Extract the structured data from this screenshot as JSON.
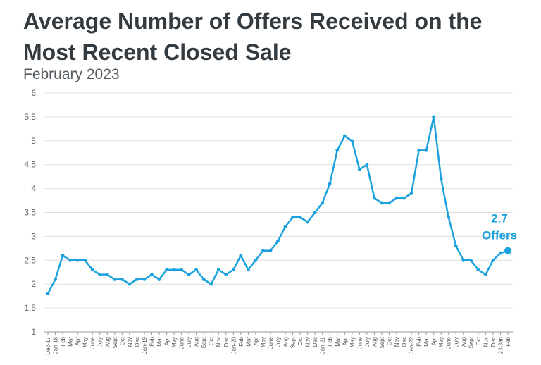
{
  "title": "Average Number of Offers Received on the Most Recent Closed Sale",
  "subtitle": "February 2023",
  "chart_data": {
    "type": "line",
    "title": "Average Number of Offers Received on the Most Recent Closed Sale",
    "subtitle": "February 2023",
    "xlabel": "",
    "ylabel": "",
    "ylim": [
      1,
      6
    ],
    "y_ticks": [
      "1",
      "1.5",
      "2",
      "2.5",
      "3",
      "3.5",
      "4",
      "4.5",
      "5",
      "5.5",
      "6"
    ],
    "grid": "horizontal",
    "line_color": "#1ba1dd",
    "categories": [
      "Dec-17",
      "Jan-18",
      "Feb",
      "Mar",
      "Apr",
      "May",
      "June",
      "July",
      "Aug",
      "Sept",
      "Oct",
      "Nov",
      "Dec",
      "Jan-19",
      "Feb",
      "Mar",
      "Apr",
      "May",
      "June",
      "July",
      "Aug",
      "Sept",
      "Oct",
      "Nov",
      "Dec",
      "Jan-20",
      "Feb",
      "Mar",
      "Apr",
      "May",
      "June",
      "July",
      "Aug",
      "Sept",
      "Oct",
      "Nov",
      "Dec",
      "Jan-21",
      "Feb",
      "Mar",
      "Apr",
      "May",
      "June",
      "July",
      "Aug",
      "Sept",
      "Oct",
      "Nov",
      "Dec",
      "Jan-22",
      "Feb",
      "Mar",
      "Apr",
      "May",
      "June",
      "July",
      "Aug",
      "Sept",
      "Oct",
      "Nov",
      "Dec",
      "23-Jan",
      "Feb"
    ],
    "values": [
      1.8,
      2.1,
      2.6,
      2.5,
      2.5,
      2.5,
      2.3,
      2.2,
      2.2,
      2.1,
      2.1,
      2.0,
      2.1,
      2.1,
      2.2,
      2.1,
      2.3,
      2.3,
      2.3,
      2.2,
      2.3,
      2.1,
      2.0,
      2.3,
      2.2,
      2.3,
      2.6,
      2.3,
      2.5,
      2.7,
      2.7,
      2.9,
      3.2,
      3.4,
      3.4,
      3.3,
      3.5,
      3.7,
      4.1,
      4.8,
      5.1,
      5.0,
      4.4,
      4.5,
      3.8,
      3.7,
      3.7,
      3.8,
      3.8,
      3.9,
      4.8,
      4.8,
      5.5,
      4.2,
      3.4,
      2.8,
      2.5,
      2.5,
      2.3,
      2.2,
      2.5,
      2.65,
      2.7
    ],
    "annotation": {
      "value_text": "2.7",
      "unit_text": "Offers"
    }
  }
}
